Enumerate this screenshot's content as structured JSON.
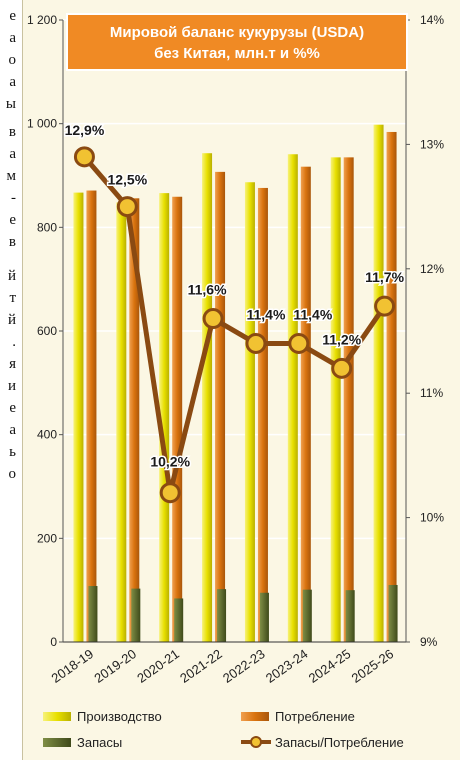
{
  "left_text_fragments": [
    "е",
    "а",
    "о",
    "а",
    "ы",
    "в",
    "а",
    "м",
    "-",
    "е",
    "в",
    "й",
    "т",
    "й",
    ".",
    "я",
    "и",
    "е",
    "а",
    "ь",
    "о"
  ],
  "chart_data": {
    "type": "bar",
    "title_lines": [
      "Мировой баланс кукурузы (USDA)",
      "без Китая, млн.т и %%"
    ],
    "categories": [
      "2018-19",
      "2019-20",
      "2020-21",
      "2021-22",
      "2022-23",
      "2023-24",
      "2024-25",
      "2025-26"
    ],
    "series": [
      {
        "name": "Производство",
        "values": [
          867,
          848,
          866,
          943,
          887,
          941,
          935,
          998
        ]
      },
      {
        "name": "Потребление",
        "values": [
          871,
          856,
          859,
          907,
          876,
          917,
          935,
          984
        ]
      },
      {
        "name": "Запасы",
        "values": [
          108,
          103,
          84,
          102,
          95,
          101,
          100,
          110
        ]
      },
      {
        "name": "Запасы/Потребление",
        "axis": "right",
        "values": [
          12.9,
          12.5,
          10.2,
          11.6,
          11.4,
          11.4,
          11.2,
          11.7
        ],
        "labels": [
          "12,9%",
          "12,5%",
          "10,2%",
          "11,6%",
          "11,4%",
          "11,4%",
          "11,2%",
          "11,7%"
        ]
      }
    ],
    "left_axis": {
      "ylim": [
        0,
        1200
      ],
      "ticks": [
        0,
        200,
        400,
        600,
        800,
        1000,
        1200
      ],
      "tick_labels": [
        "0",
        "200",
        "400",
        "600",
        "800",
        "1 000",
        "1 200"
      ]
    },
    "right_axis": {
      "ylim": [
        9,
        14
      ],
      "ticks": [
        9,
        10,
        11,
        12,
        13,
        14
      ],
      "tick_labels": [
        "9%",
        "10%",
        "11%",
        "12%",
        "13%",
        "14%"
      ]
    },
    "legend_placement": "bottom",
    "colors": {
      "production": "#e8e000",
      "consumption": "#d9730e",
      "stocks": "#5c6b2a",
      "ratio_line": "#8a4a12",
      "ratio_marker": "#f1c232",
      "title_bg": "#f08a24",
      "grid": "#ffffff",
      "plot_bg": "#fbf7e4"
    }
  }
}
